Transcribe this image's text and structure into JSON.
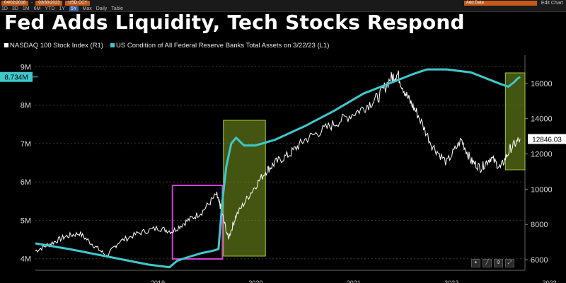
{
  "toolbar": {
    "date_start": "04/02/2018",
    "date_end": "03/30/2023",
    "security": "USD CCY",
    "periods": [
      "1D",
      "3D",
      "1M",
      "6M",
      "YTD",
      "1Y",
      "5Y",
      "Max"
    ],
    "active_period": "5Y",
    "frequency": "Daily",
    "view": "Table",
    "ord_box": "Add Data",
    "edit_chart": "Edit Chart"
  },
  "title": "Fed Adds Liquidity, Tech Stocks Respond",
  "legend": {
    "nasdaq": "NASDAQ 100 Stock Index  (R1)",
    "fed": "US Condition of All Federal Reserve Banks Total Assets  on 3/22/23  (L1)"
  },
  "colors": {
    "nasdaq": "#ffffff",
    "fed": "#3fc8cc",
    "green_box": "#7a9a1e",
    "magenta_box": "#d33fd3",
    "background": "#000000"
  },
  "chart_data": {
    "type": "line",
    "left_axis": {
      "ticks": [
        "4M",
        "5M",
        "6M",
        "7M",
        "8M",
        "9M"
      ],
      "range": [
        3.7,
        9.3
      ],
      "last_value_label": "8.734M",
      "last_value": 8.734
    },
    "right_axis": {
      "ticks": [
        "6000",
        "8000",
        "10000",
        "12000",
        "14000",
        "16000"
      ],
      "range": [
        5400,
        17600
      ],
      "last_value_label": "12846.03",
      "last_value": 12846.03
    },
    "x_range": [
      2018.25,
      2023.25
    ],
    "x_labels": [
      "2019",
      "2020",
      "2021",
      "2022",
      "2023"
    ],
    "series": [
      {
        "name": "US Condition of All Federal Reserve Banks Total Assets  on 3/22/23",
        "axis": "left",
        "x": [
          2018.25,
          2018.6,
          2019.0,
          2019.4,
          2019.62,
          2019.7,
          2019.82,
          2019.95,
          2020.05,
          2020.12,
          2020.16,
          2020.2,
          2020.25,
          2020.3,
          2020.38,
          2020.5,
          2020.7,
          2021.0,
          2021.3,
          2021.6,
          2021.9,
          2022.1,
          2022.25,
          2022.45,
          2022.7,
          2022.9,
          2023.0,
          2023.08,
          2023.14,
          2023.17,
          2023.2
        ],
        "values": [
          4.4,
          4.25,
          4.05,
          3.85,
          3.78,
          3.95,
          4.05,
          4.15,
          4.2,
          4.25,
          5.5,
          6.4,
          7.0,
          7.15,
          6.95,
          6.95,
          7.1,
          7.45,
          7.85,
          8.3,
          8.6,
          8.8,
          8.93,
          8.93,
          8.85,
          8.65,
          8.55,
          8.48,
          8.6,
          8.68,
          8.734
        ]
      },
      {
        "name": "NASDAQ 100 Stock Index",
        "axis": "right",
        "x": [
          2018.25,
          2018.4,
          2018.55,
          2018.7,
          2018.85,
          2018.98,
          2019.1,
          2019.3,
          2019.5,
          2019.65,
          2019.8,
          2019.95,
          2020.1,
          2020.14,
          2020.22,
          2020.3,
          2020.45,
          2020.6,
          2020.7,
          2020.85,
          2021.0,
          2021.2,
          2021.4,
          2021.6,
          2021.75,
          2021.88,
          2021.95,
          2022.05,
          2022.15,
          2022.3,
          2022.45,
          2022.6,
          2022.7,
          2022.8,
          2022.9,
          2023.0,
          2023.1,
          2023.2
        ],
        "values": [
          6500,
          6900,
          7300,
          7500,
          6800,
          6200,
          7000,
          7500,
          7800,
          7600,
          8200,
          8700,
          9700,
          9000,
          7200,
          8500,
          9800,
          11000,
          11500,
          12000,
          12800,
          13400,
          14000,
          14600,
          15200,
          16300,
          16500,
          15200,
          14300,
          12500,
          11500,
          12800,
          11600,
          11200,
          11800,
          11200,
          12300,
          12846
        ]
      }
    ],
    "annotations": [
      {
        "type": "rect",
        "color": "magenta",
        "x_range": [
          2019.65,
          2020.16
        ]
      },
      {
        "type": "rect",
        "color": "green",
        "x_range": [
          2020.17,
          2020.6
        ]
      },
      {
        "type": "rect",
        "color": "green",
        "x_range": [
          2023.05,
          2023.25
        ]
      }
    ],
    "title": "Fed Adds Liquidity, Tech Stocks Respond",
    "legend_position": "top-left",
    "grid": true
  }
}
